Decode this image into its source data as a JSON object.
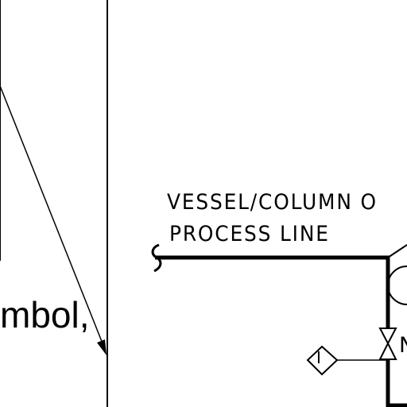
{
  "slide": {
    "fragment_text": "mbol,"
  },
  "diagram": {
    "label_line1": "VESSEL/COLUMN O",
    "label_line2": "PROCESS LINE",
    "indicator_letter": "I",
    "valve_tag_fragment": "N",
    "icons": [
      "callout-arrow-icon",
      "pipe-break-icon",
      "gate-valve-icon",
      "indicator-diamond-icon",
      "instrument-bubble-icon"
    ]
  }
}
